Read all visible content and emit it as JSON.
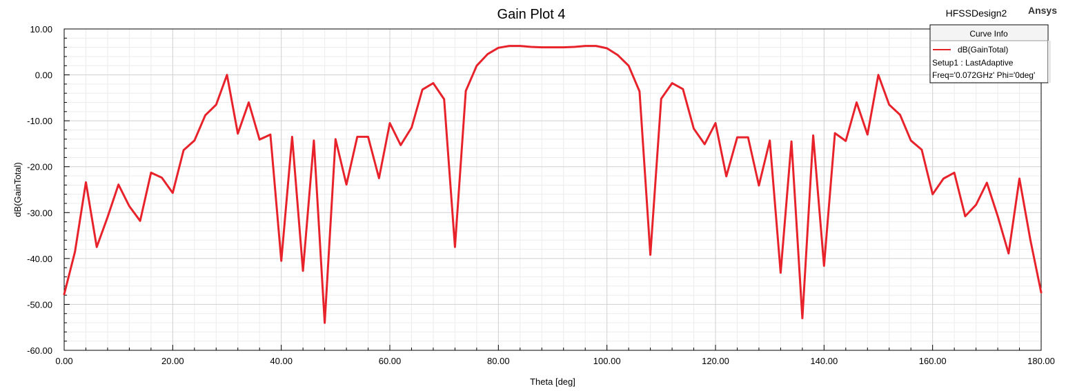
{
  "header": {
    "title": "Gain Plot 4",
    "design": "HFSSDesign2",
    "brand": "Ansys"
  },
  "legend": {
    "header": "Curve Info",
    "curve_name": "dB(GainTotal)",
    "setup": "Setup1 : LastAdaptive",
    "params": "Freq='0.072GHz' Phi='0deg'"
  },
  "colors": {
    "curve": "#e8222a",
    "grid_major": "#cfcfcf",
    "grid_minor": "#ececec",
    "axis": "#000000"
  },
  "chart_data": {
    "type": "line",
    "title": "Gain Plot 4",
    "xlabel": "Theta [deg]",
    "ylabel": "dB(GainTotal)",
    "xlim": [
      0,
      180
    ],
    "ylim": [
      -60,
      10
    ],
    "xticks": [
      "0.00",
      "20.00",
      "40.00",
      "60.00",
      "80.00",
      "100.00",
      "120.00",
      "140.00",
      "160.00",
      "180.00"
    ],
    "yticks": [
      "10.00",
      "0.00",
      "-10.00",
      "-20.00",
      "-30.00",
      "-40.00",
      "-50.00",
      "-60.00"
    ],
    "grid": true,
    "legend_position": "top-right",
    "series": [
      {
        "name": "dB(GainTotal)",
        "x": [
          0,
          2,
          4,
          6,
          8,
          10,
          12,
          14,
          16,
          18,
          20,
          22,
          24,
          26,
          28,
          30,
          32,
          34,
          36,
          38,
          40,
          42,
          44,
          46,
          48,
          50,
          52,
          54,
          56,
          58,
          60,
          62,
          64,
          66,
          68,
          70,
          72,
          74,
          76,
          78,
          80,
          82,
          84,
          86,
          88,
          90,
          92,
          94,
          96,
          98,
          100,
          102,
          104,
          106,
          108,
          110,
          112,
          114,
          116,
          118,
          120,
          122,
          124,
          126,
          128,
          130,
          132,
          134,
          136,
          138,
          140,
          142,
          144,
          146,
          148,
          150,
          152,
          154,
          156,
          158,
          160,
          162,
          164,
          166,
          168,
          170,
          172,
          174,
          176,
          178,
          180
        ],
        "y": [
          -47.8,
          -38.5,
          -23.4,
          -37.5,
          -31,
          -23.9,
          -28.6,
          -31.8,
          -21.3,
          -22.4,
          -25.7,
          -16.4,
          -14.3,
          -8.8,
          -6.5,
          0,
          -12.8,
          -6,
          -14.1,
          -13,
          -40.5,
          -13.5,
          -42.7,
          -14.3,
          -54,
          -14,
          -23.9,
          -13.5,
          -13.5,
          -22.5,
          -10.5,
          -15.3,
          -11.5,
          -3.2,
          -1.8,
          -5.3,
          -37.5,
          -3.5,
          2,
          4.5,
          5.9,
          6.3,
          6.3,
          6.1,
          6,
          6,
          6,
          6.1,
          6.3,
          6.3,
          5.8,
          4.3,
          2,
          -3.6,
          -39.2,
          -5.2,
          -1.8,
          -3.1,
          -11.7,
          -15.1,
          -10.5,
          -22.1,
          -13.6,
          -13.6,
          -24.1,
          -14.3,
          -43.1,
          -14.5,
          -53,
          -13.2,
          -41.6,
          -12.7,
          -14.4,
          -6,
          -13,
          0,
          -6.5,
          -8.7,
          -14.3,
          -16.3,
          -26,
          -22.6,
          -21.3,
          -30.8,
          -28.3,
          -23.5,
          -30.8,
          -38.9,
          -22.6,
          -35.9,
          -47.4
        ]
      }
    ]
  }
}
